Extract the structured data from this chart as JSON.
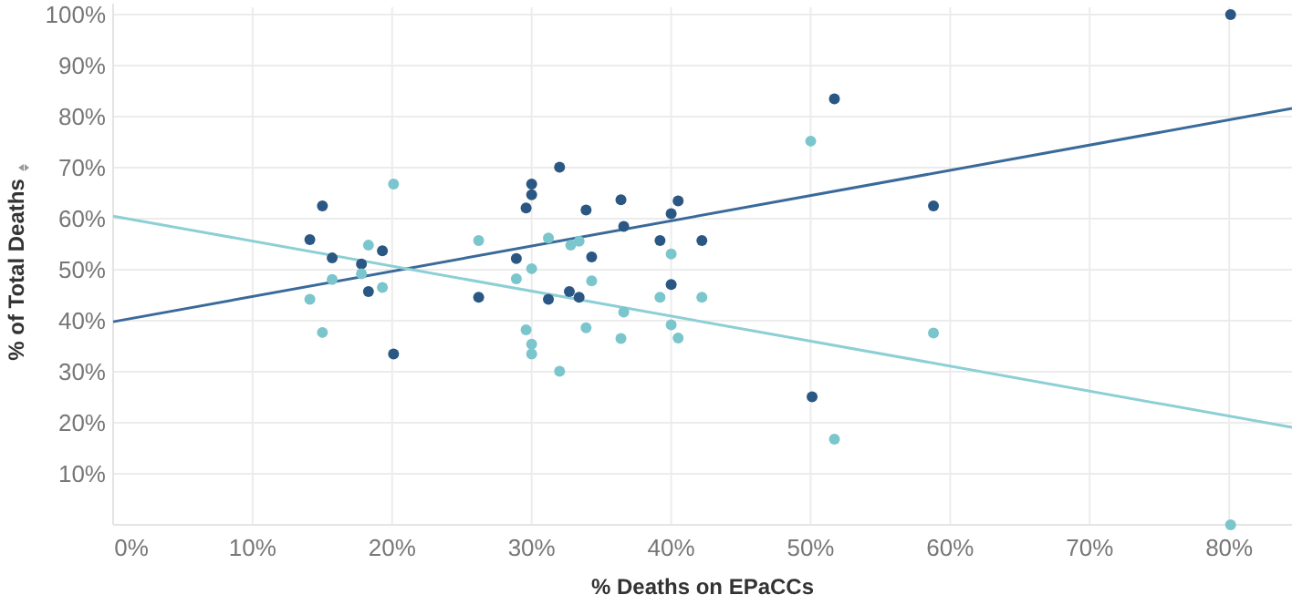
{
  "chart_data": {
    "type": "scatter",
    "xlabel": "% Deaths on EPaCCs",
    "ylabel": "% of Total Deaths",
    "xlim": [
      0,
      84.5
    ],
    "ylim": [
      0,
      100
    ],
    "xticks": [
      {
        "value": 0,
        "label": "0%"
      },
      {
        "value": 10,
        "label": "10%"
      },
      {
        "value": 20,
        "label": "20%"
      },
      {
        "value": 30,
        "label": "30%"
      },
      {
        "value": 40,
        "label": "40%"
      },
      {
        "value": 50,
        "label": "50%"
      },
      {
        "value": 60,
        "label": "60%"
      },
      {
        "value": 70,
        "label": "70%"
      },
      {
        "value": 80,
        "label": "80%"
      }
    ],
    "yticks": [
      {
        "value": 10,
        "label": "10%"
      },
      {
        "value": 20,
        "label": "20%"
      },
      {
        "value": 30,
        "label": "30%"
      },
      {
        "value": 40,
        "label": "40%"
      },
      {
        "value": 50,
        "label": "50%"
      },
      {
        "value": 60,
        "label": "60%"
      },
      {
        "value": 70,
        "label": "70%"
      },
      {
        "value": 80,
        "label": "80%"
      },
      {
        "value": 90,
        "label": "90%"
      },
      {
        "value": 100,
        "label": "100%"
      }
    ],
    "grid": true,
    "series": [
      {
        "marker": "circle",
        "color": "#2a5783",
        "x": [
          15.0,
          14.1,
          15.7,
          17.8,
          19.3,
          18.3,
          20.1,
          32.0,
          30.0,
          30.0,
          29.6,
          33.9,
          36.4,
          36.6,
          40.5,
          40.0,
          39.2,
          42.2,
          34.3,
          28.9,
          26.2,
          31.2,
          32.7,
          33.4,
          40.0,
          50.1,
          80.1,
          51.7,
          58.8
        ],
        "values": [
          62.5,
          55.9,
          52.3,
          51.1,
          53.7,
          45.7,
          33.5,
          70.1,
          66.8,
          64.7,
          62.1,
          61.7,
          63.7,
          58.5,
          63.5,
          61.0,
          55.7,
          55.7,
          52.5,
          52.2,
          44.6,
          44.2,
          45.7,
          44.6,
          47.1,
          25.1,
          100,
          83.5,
          62.5
        ]
      },
      {
        "marker": "circle",
        "color": "#7ac6cc",
        "x": [
          20.1,
          18.3,
          15.7,
          17.8,
          19.3,
          14.1,
          15.0,
          26.2,
          31.2,
          32.8,
          33.4,
          30.0,
          28.9,
          34.3,
          40.0,
          39.2,
          42.2,
          36.6,
          29.6,
          33.9,
          40.0,
          36.4,
          40.5,
          30.0,
          30.0,
          32.0,
          51.7,
          50.0,
          58.8,
          80.1
        ],
        "values": [
          66.8,
          54.8,
          48.1,
          49.2,
          46.5,
          44.2,
          37.7,
          55.7,
          56.2,
          54.8,
          55.6,
          50.2,
          48.2,
          47.8,
          53.1,
          44.6,
          44.6,
          41.7,
          38.2,
          38.6,
          39.2,
          36.5,
          36.6,
          35.4,
          33.5,
          30.1,
          16.8,
          75.2,
          37.6,
          0
        ]
      },
      {
        "type": "line",
        "color": "#3a6a9a",
        "x": [
          0,
          84.5
        ],
        "values": [
          39.8,
          81.6
        ]
      },
      {
        "type": "line",
        "color": "#8ccfd5",
        "x": [
          0,
          84.5
        ],
        "values": [
          60.5,
          19.1
        ]
      }
    ]
  }
}
